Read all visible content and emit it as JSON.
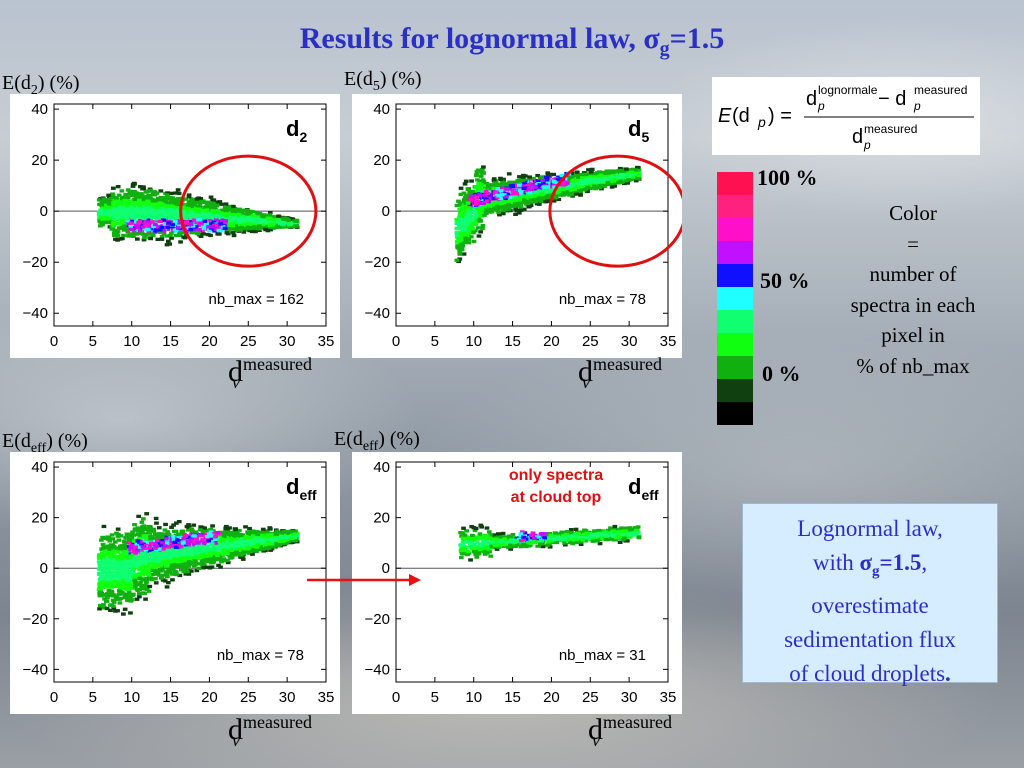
{
  "title": {
    "main": "Results for lognormal law, ",
    "sigma": "σ",
    "sub": "g",
    "value": "=1.5"
  },
  "formula": {
    "lhs_E": "E",
    "lhs_d": "(d",
    "lhs_p": "p",
    "lhs_close": ") =",
    "num_d1": "d",
    "num_sup1": "lognormale",
    "num_sub1": "p",
    "num_minus": " − d",
    "num_sup2": "measured",
    "num_sub2": "p",
    "den_d": "d",
    "den_sup": "measured",
    "den_sub": "p"
  },
  "colorbar": {
    "colors": [
      "#ff1050",
      "#ff2080",
      "#ff10c8",
      "#c010ff",
      "#1010ff",
      "#20ffff",
      "#10ff70",
      "#10ff10",
      "#10b010",
      "#104010",
      "#000000"
    ],
    "labels": {
      "top": "100 %",
      "mid": "50 %",
      "bottom": "0 %"
    }
  },
  "legend_note": [
    "Color",
    "=",
    "number of",
    "spectra in each",
    "pixel in",
    "% of nb_max"
  ],
  "conclusion": {
    "line1": "Lognormal law,",
    "line2_pre": "with ",
    "line2_sigma": "σ",
    "line2_sub": "g",
    "line2_val": "=1.5",
    "line2_post": ",",
    "line3": "overestimate",
    "line4": "sedimentation flux",
    "line5_pre": "of cloud droplets",
    "line5_post": "."
  },
  "xlabel": {
    "base": "d",
    "sup": "measured",
    "sub": "v"
  },
  "annotation": {
    "line1": "only spectra",
    "line2": "at cloud top"
  },
  "chart_data": [
    {
      "type": "heatmap",
      "ylabel_pre": "E(d",
      "ylabel_sub": "2",
      "ylabel_post": ") (%)",
      "panel_label": "d",
      "panel_label_sub": "2",
      "note": "nb_max = 162",
      "xlim": [
        0,
        35
      ],
      "ylim": [
        -45,
        42
      ],
      "xticks": [
        0,
        5,
        10,
        15,
        20,
        25,
        30,
        35
      ],
      "yticks": [
        -40,
        -20,
        0,
        20,
        40
      ],
      "highlight_ellipse": {
        "center": [
          25,
          0
        ],
        "radius": [
          8.7,
          8.5
        ]
      }
    },
    {
      "type": "heatmap",
      "ylabel_pre": "E(d",
      "ylabel_sub": "5",
      "ylabel_post": ") (%)",
      "panel_label": "d",
      "panel_label_sub": "5",
      "note": "nb_max =  78",
      "xlim": [
        0,
        35
      ],
      "ylim": [
        -45,
        42
      ],
      "xticks": [
        0,
        5,
        10,
        15,
        20,
        25,
        30,
        35
      ],
      "yticks": [
        -40,
        -20,
        0,
        20,
        40
      ],
      "highlight_ellipse": {
        "center": [
          28.5,
          0
        ],
        "radius": [
          8.7,
          8.5
        ]
      }
    },
    {
      "type": "heatmap",
      "ylabel_pre": "E(d",
      "ylabel_sub": "eff",
      "ylabel_post": ") (%)",
      "panel_label": "d",
      "panel_label_sub": "eff",
      "note": "nb_max =  78",
      "xlim": [
        0,
        35
      ],
      "ylim": [
        -45,
        42
      ],
      "xticks": [
        0,
        5,
        10,
        15,
        20,
        25,
        30,
        35
      ],
      "yticks": [
        -40,
        -20,
        0,
        20,
        40
      ]
    },
    {
      "type": "heatmap",
      "ylabel_pre": "E(d",
      "ylabel_sub": "eff",
      "ylabel_post": ") (%)",
      "panel_label": "d",
      "panel_label_sub": "eff",
      "note": "nb_max =  31",
      "xlim": [
        0,
        35
      ],
      "ylim": [
        -45,
        42
      ],
      "xticks": [
        0,
        5,
        10,
        15,
        20,
        25,
        30,
        35
      ],
      "yticks": [
        -40,
        -20,
        0,
        20,
        40
      ]
    }
  ]
}
